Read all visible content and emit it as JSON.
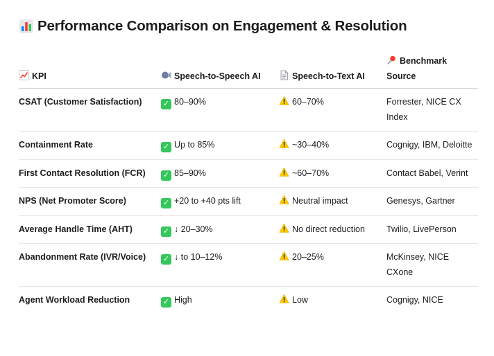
{
  "title": "Performance Comparison on Engagement & Resolution",
  "headers": {
    "kpi": "KPI",
    "sts": "Speech-to-Speech AI",
    "stt": "Speech-to-Text AI",
    "source": "Benchmark Source"
  },
  "rows": [
    {
      "kpi": "CSAT (Customer Satisfaction)",
      "sts": "80–90%",
      "stt": "60–70%",
      "source": "Forrester, NICE CX Index"
    },
    {
      "kpi": "Containment Rate",
      "sts": "Up to 85%",
      "stt": "~30–40%",
      "source": "Cognigy, IBM, Deloitte"
    },
    {
      "kpi": "First Contact Resolution (FCR)",
      "sts": "85–90%",
      "stt": "~60–70%",
      "source": "Contact Babel, Verint"
    },
    {
      "kpi": "NPS (Net Promoter Score)",
      "sts": "+20 to +40 pts lift",
      "stt": "Neutral impact",
      "source": "Genesys, Gartner"
    },
    {
      "kpi": "Average Handle Time (AHT)",
      "sts": "↓ 20–30%",
      "stt": "No direct reduction",
      "source": "Twilio, LivePerson"
    },
    {
      "kpi": "Abandonment Rate (IVR/Voice)",
      "sts": "↓ to 10–12%",
      "stt": "20–25%",
      "source": "McKinsey, NICE CXone"
    },
    {
      "kpi": "Agent Workload Reduction",
      "sts": "High",
      "stt": "Low",
      "source": "Cognigy, NICE"
    }
  ]
}
